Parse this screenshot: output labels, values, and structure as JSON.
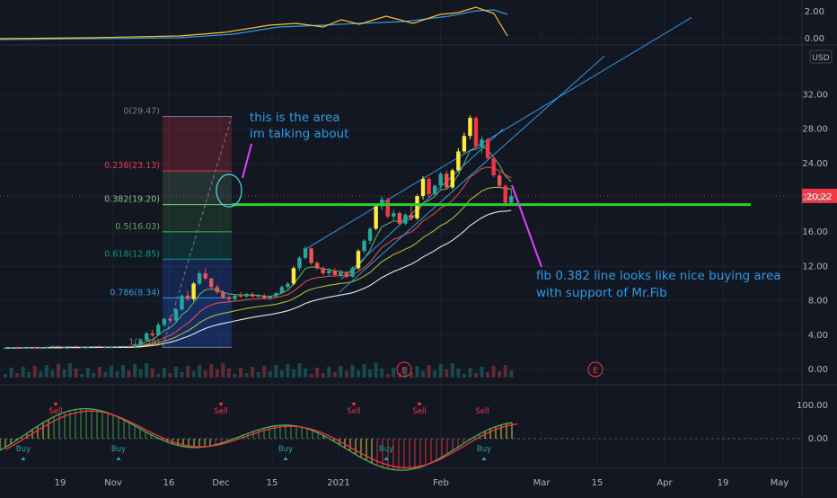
{
  "chart_data": {
    "type": "candlestick",
    "currency": "USD",
    "last_price": "20.22",
    "price_axis": {
      "ticks": [
        "32.00",
        "28.00",
        "24.00",
        "20.00",
        "16.00",
        "12.00",
        "8.00",
        "4.00",
        "0.00"
      ],
      "ylim": [
        0,
        34
      ]
    },
    "osc_top_axis": {
      "ticks": [
        "2.00",
        "0.00"
      ]
    },
    "osc_bottom_axis": {
      "ticks": [
        "100.00",
        "0.00"
      ]
    },
    "time_axis": [
      "19",
      "Nov",
      "16",
      "Dec",
      "15",
      "2021",
      "Feb",
      "Mar",
      "15",
      "Apr",
      "19",
      "May"
    ],
    "fib_levels": [
      {
        "label": "0(29.47)",
        "value": 29.47,
        "color": "#787b86"
      },
      {
        "label": "0.236(23.13)",
        "value": 23.13,
        "color": "#f23645"
      },
      {
        "label": "0.382(19.20)",
        "value": 19.2,
        "color": "#81c784"
      },
      {
        "label": "0.5(16.03)",
        "value": 16.03,
        "color": "#4caf50"
      },
      {
        "label": "0.618(12.85)",
        "value": 12.85,
        "color": "#089981"
      },
      {
        "label": "0.786(8.34)",
        "value": 8.34,
        "color": "#2f9ae6"
      },
      {
        "label": "1(2.58)",
        "value": 2.58,
        "color": "#787b86"
      }
    ],
    "support_line_value": 19.2,
    "earnings_markers": [
      "E",
      "E"
    ],
    "signals": [
      {
        "label": "Sell",
        "type": "sell"
      },
      {
        "label": "Buy",
        "type": "buy"
      },
      {
        "label": "Buy",
        "type": "buy"
      },
      {
        "label": "Sell",
        "type": "sell"
      },
      {
        "label": "Buy",
        "type": "buy"
      },
      {
        "label": "Sell",
        "type": "sell"
      },
      {
        "label": "Buy",
        "type": "buy"
      },
      {
        "label": "Sell",
        "type": "sell"
      },
      {
        "label": "Buy",
        "type": "buy"
      },
      {
        "label": "Sell",
        "type": "sell"
      }
    ],
    "annotations": [
      {
        "line1": "this is the area",
        "line2": "im talking about"
      },
      {
        "line1": "fib 0.382 line looks like nice buying area",
        "line2": "with support of Mr.Fib"
      }
    ],
    "candles": [
      [
        2.5,
        2.6,
        2.4,
        2.5
      ],
      [
        2.5,
        2.6,
        2.4,
        2.6
      ],
      [
        2.6,
        2.7,
        2.5,
        2.5
      ],
      [
        2.5,
        2.6,
        2.4,
        2.6
      ],
      [
        2.6,
        2.7,
        2.5,
        2.6
      ],
      [
        2.6,
        2.7,
        2.5,
        2.5
      ],
      [
        2.5,
        2.6,
        2.4,
        2.6
      ],
      [
        2.6,
        2.7,
        2.5,
        2.6
      ],
      [
        2.6,
        2.8,
        2.5,
        2.7
      ],
      [
        2.7,
        2.8,
        2.6,
        2.6
      ],
      [
        2.6,
        2.7,
        2.5,
        2.6
      ],
      [
        2.6,
        2.7,
        2.5,
        2.7
      ],
      [
        2.7,
        2.8,
        2.6,
        2.6
      ],
      [
        2.6,
        2.7,
        2.5,
        2.6
      ],
      [
        2.6,
        2.7,
        2.5,
        2.6
      ],
      [
        2.6,
        2.7,
        2.5,
        2.7
      ],
      [
        2.7,
        2.8,
        2.6,
        2.6
      ],
      [
        2.6,
        2.7,
        2.5,
        2.6
      ],
      [
        2.6,
        2.7,
        2.5,
        2.6
      ],
      [
        2.6,
        2.7,
        2.5,
        2.7
      ],
      [
        2.7,
        2.8,
        2.6,
        2.7
      ],
      [
        2.7,
        2.8,
        2.6,
        2.6
      ],
      [
        2.6,
        3.0,
        2.5,
        2.9
      ],
      [
        2.9,
        3.5,
        2.8,
        3.4
      ],
      [
        3.4,
        4.4,
        3.2,
        4.2
      ],
      [
        4.2,
        4.6,
        3.8,
        4.0
      ],
      [
        4.0,
        5.5,
        3.9,
        5.2
      ],
      [
        5.2,
        6.0,
        5.0,
        5.9
      ],
      [
        5.9,
        6.3,
        5.5,
        5.7
      ],
      [
        5.7,
        7.2,
        5.6,
        7.0
      ],
      [
        7.0,
        8.8,
        6.8,
        8.6
      ],
      [
        8.6,
        9.2,
        8.0,
        8.2
      ],
      [
        8.2,
        10.2,
        8.0,
        10.0
      ],
      [
        10.0,
        11.5,
        9.8,
        11.2
      ],
      [
        11.2,
        11.8,
        10.4,
        10.6
      ],
      [
        10.6,
        10.6,
        9.4,
        9.6
      ],
      [
        9.6,
        9.9,
        8.8,
        9.0
      ],
      [
        9.0,
        9.2,
        8.2,
        8.4
      ],
      [
        8.4,
        8.6,
        7.9,
        8.2
      ],
      [
        8.2,
        8.8,
        8.0,
        8.6
      ],
      [
        8.6,
        9.0,
        8.3,
        8.5
      ],
      [
        8.5,
        8.9,
        8.3,
        8.8
      ],
      [
        8.8,
        9.0,
        8.4,
        8.5
      ],
      [
        8.5,
        8.8,
        8.3,
        8.6
      ],
      [
        8.6,
        8.8,
        8.2,
        8.3
      ],
      [
        8.3,
        8.6,
        8.1,
        8.5
      ],
      [
        8.5,
        9.0,
        8.4,
        8.9
      ],
      [
        8.9,
        9.8,
        8.8,
        9.6
      ],
      [
        9.6,
        10.2,
        9.4,
        10.0
      ],
      [
        10.0,
        12.0,
        9.8,
        11.8
      ],
      [
        11.8,
        13.2,
        11.5,
        13.0
      ],
      [
        13.0,
        14.4,
        12.8,
        14.1
      ],
      [
        14.1,
        14.2,
        12.2,
        12.4
      ],
      [
        12.4,
        12.6,
        11.6,
        11.8
      ],
      [
        11.8,
        12.0,
        11.0,
        11.2
      ],
      [
        11.2,
        11.8,
        10.9,
        11.5
      ],
      [
        11.5,
        11.8,
        10.8,
        11.0
      ],
      [
        11.0,
        11.6,
        10.7,
        11.3
      ],
      [
        11.3,
        11.5,
        10.6,
        10.8
      ],
      [
        10.8,
        12.0,
        10.7,
        11.8
      ],
      [
        11.8,
        14.0,
        11.6,
        13.8
      ],
      [
        13.8,
        15.2,
        13.5,
        15.0
      ],
      [
        15.0,
        16.6,
        14.6,
        16.4
      ],
      [
        16.4,
        19.2,
        16.2,
        19.0
      ],
      [
        19.0,
        20.2,
        18.6,
        19.8
      ],
      [
        19.8,
        20.0,
        17.6,
        17.8
      ],
      [
        17.8,
        18.6,
        17.4,
        18.2
      ],
      [
        18.2,
        18.4,
        16.8,
        17.0
      ],
      [
        17.0,
        18.2,
        16.8,
        18.0
      ],
      [
        18.0,
        19.2,
        17.4,
        17.6
      ],
      [
        17.6,
        20.4,
        17.4,
        20.2
      ],
      [
        20.2,
        22.5,
        19.8,
        22.2
      ],
      [
        22.2,
        22.4,
        20.0,
        20.4
      ],
      [
        20.4,
        21.6,
        20.2,
        21.4
      ],
      [
        21.4,
        23.0,
        21.0,
        22.8
      ],
      [
        22.8,
        23.2,
        21.0,
        21.2
      ],
      [
        21.2,
        23.4,
        21.0,
        23.2
      ],
      [
        23.2,
        25.8,
        23.0,
        25.4
      ],
      [
        25.4,
        27.6,
        25.2,
        27.2
      ],
      [
        27.2,
        29.6,
        26.8,
        29.3
      ],
      [
        29.3,
        29.5,
        25.6,
        26.0
      ],
      [
        26.0,
        27.2,
        25.2,
        26.8
      ],
      [
        26.8,
        27.0,
        24.4,
        24.6
      ],
      [
        24.6,
        24.8,
        22.4,
        22.6
      ],
      [
        22.6,
        23.0,
        21.2,
        21.4
      ],
      [
        21.4,
        21.6,
        19.0,
        19.4
      ],
      [
        19.4,
        21.0,
        19.2,
        20.2
      ]
    ]
  }
}
